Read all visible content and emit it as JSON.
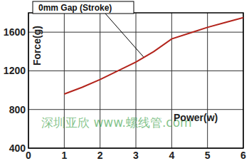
{
  "chart_data": {
    "type": "line",
    "x_label": "Power(w)",
    "y_label": "Force(g)",
    "x": [
      1,
      1.5,
      2,
      2.5,
      3,
      3.5,
      4,
      4.5,
      5,
      5.5,
      6
    ],
    "series": [
      {
        "name": "0mm Gap (Stroke)",
        "color": "#b3241c",
        "line_style": "solid",
        "values": [
          960,
          1030,
          1110,
          1200,
          1290,
          1400,
          1530,
          1590,
          1650,
          1700,
          1750
        ]
      }
    ],
    "xlim": [
      0,
      6
    ],
    "xticks": [
      0,
      1,
      2,
      3,
      4,
      5,
      6
    ],
    "ylim": [
      400,
      1800
    ],
    "yticks": [
      400,
      800,
      1200,
      1600
    ],
    "grid": true,
    "annotations": [
      {
        "text": "深圳亚欣 www.螺线管.com"
      }
    ]
  }
}
